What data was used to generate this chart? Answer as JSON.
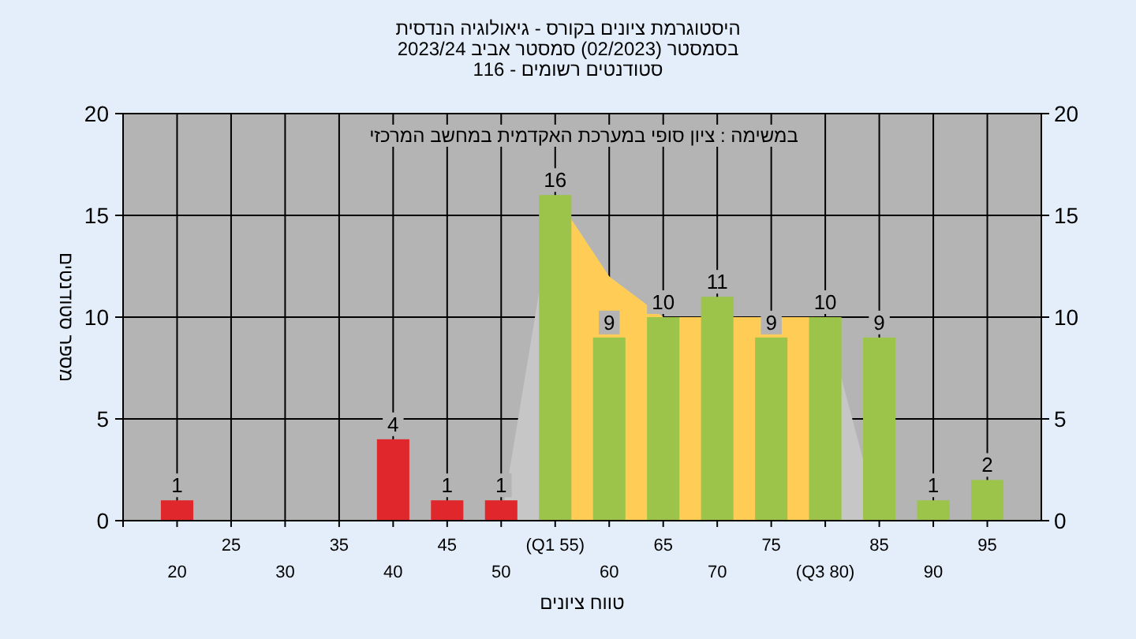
{
  "chart_data": {
    "type": "bar",
    "title": "היסטוגרמת ציונים בקורס - גיאולוגיה הנדסית",
    "subtitle": "בסמסטר  (02/2023)  סמסטר אביב 2023/24",
    "annotations": [
      "סטודנטים רשומים - 116",
      "במשימה : ציון סופי במערכת האקדמית במחשב המרכזי"
    ],
    "xlabel": "טווח ציונים",
    "ylabel": "מספר סטודנטים",
    "categories": [
      "20",
      "25",
      "30",
      "35",
      "40",
      "45",
      "50",
      "(Q1 55)",
      "60",
      "65",
      "70",
      "75",
      "(Q3 80)",
      "85",
      "90",
      "95"
    ],
    "series": [
      {
        "type": "area",
        "color": "#c6c6c6",
        "values": [
          null,
          null,
          null,
          null,
          null,
          null,
          0,
          16,
          12,
          10,
          null,
          null,
          10,
          0,
          null,
          null
        ]
      },
      {
        "type": "area",
        "color": "#ffcc55",
        "values": [
          null,
          null,
          null,
          null,
          null,
          null,
          null,
          16,
          12,
          10,
          null,
          null,
          10,
          null,
          null,
          null
        ]
      },
      {
        "values": [
          1,
          0,
          0,
          0,
          4,
          1,
          1,
          16,
          9,
          10,
          11,
          9,
          10,
          9,
          1,
          2
        ],
        "colors": [
          "#e0282c",
          "#e0282c",
          "#e0282c",
          "#e0282c",
          "#e0282c",
          "#e0282c",
          "#e0282c",
          "#9cc44a",
          "#9cc44a",
          "#9cc44a",
          "#9cc44a",
          "#9cc44a",
          "#9cc44a",
          "#9cc44a",
          "#9cc44a",
          "#9cc44a"
        ],
        "value_labels": [
          "1",
          null,
          null,
          null,
          "4",
          "1",
          "1",
          "16",
          "9",
          "10",
          "11",
          "9",
          "10",
          "9",
          "1",
          "2"
        ]
      }
    ],
    "ylim": [
      0,
      20
    ],
    "yticks": [
      0,
      5,
      10,
      15,
      20
    ],
    "y2lim": [
      0,
      20
    ],
    "y2ticks": [
      0,
      5,
      10,
      15,
      20
    ],
    "grid": true
  }
}
